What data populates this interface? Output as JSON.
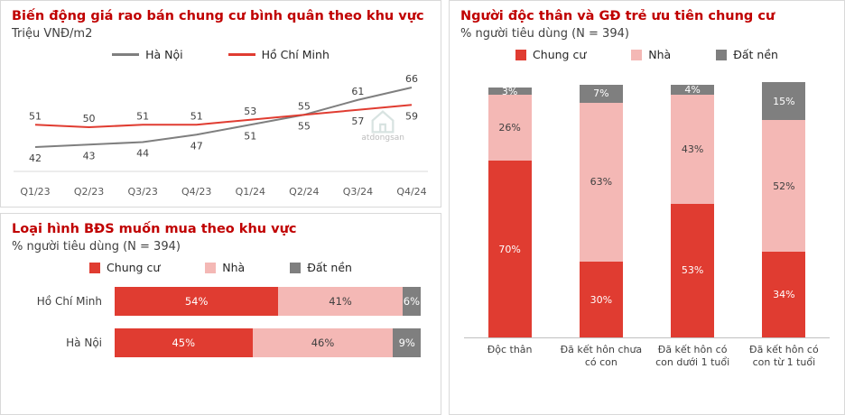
{
  "panels": {
    "price_trend": {
      "title": "Biến động giá rao bán chung cư bình quân theo khu vực",
      "subtitle": "Triệu VNĐ/m2"
    },
    "property_type_region": {
      "title": "Loại hình BĐS muốn mua theo khu vực",
      "subtitle": "% người tiêu dùng (N = 394)"
    },
    "priority_segment": {
      "title": "Người độc thân và GĐ trẻ ưu tiên chung cư",
      "subtitle": "% người tiêu dùng (N = 394)"
    }
  },
  "watermark": {
    "text": "atdongsan",
    "icon": "house-outline-icon"
  },
  "colors": {
    "title_red": "#c00000",
    "chung_cu_red": "#e03c31",
    "nha_pink": "#f4b8b5",
    "dat_nen_gray": "#7f7f7f",
    "hanoi_gray": "#7f7f7f",
    "hcm_red": "#e03c31",
    "axis_gray": "#d9d9d9"
  },
  "chart_data": [
    {
      "type": "line",
      "title": "Biến động giá rao bán chung cư bình quân theo khu vực",
      "ylabel": "Triệu VNĐ/m2",
      "categories": [
        "Q1/23",
        "Q2/23",
        "Q3/23",
        "Q4/23",
        "Q1/24",
        "Q2/24",
        "Q3/24",
        "Q4/24"
      ],
      "series": [
        {
          "name": "Hà Nội",
          "color": "#7f7f7f",
          "values": [
            42,
            43,
            44,
            47,
            51,
            55,
            61,
            66
          ]
        },
        {
          "name": "Hồ Chí Minh",
          "color": "#e03c31",
          "values": [
            51,
            50,
            51,
            51,
            53,
            55,
            57,
            59
          ]
        }
      ],
      "ylim": [
        38,
        70
      ],
      "grid": false,
      "legend_position": "top"
    },
    {
      "type": "bar",
      "orientation": "horizontal",
      "stacked": true,
      "title": "Loại hình BĐS muốn mua theo khu vực",
      "subtitle": "% người tiêu dùng (N = 394)",
      "categories": [
        "Hồ Chí Minh",
        "Hà Nội"
      ],
      "series": [
        {
          "name": "Chung cư",
          "color": "#e03c31",
          "values": [
            54,
            45
          ]
        },
        {
          "name": "Nhà",
          "color": "#f4b8b5",
          "values": [
            41,
            46
          ]
        },
        {
          "name": "Đất nền",
          "color": "#7f7f7f",
          "values": [
            6,
            9
          ]
        }
      ],
      "value_suffix": "%",
      "legend_position": "top"
    },
    {
      "type": "bar",
      "orientation": "vertical",
      "stacked": true,
      "title": "Người độc thân và GĐ trẻ ưu tiên chung cư",
      "subtitle": "% người tiêu dùng (N = 394)",
      "categories": [
        "Độc thân",
        "Đã kết hôn chưa có con",
        "Đã kết hôn có con dưới 1 tuổi",
        "Đã kết hôn có con từ 1 tuổi"
      ],
      "series": [
        {
          "name": "Chung cư",
          "color": "#e03c31",
          "values": [
            70,
            30,
            53,
            34
          ]
        },
        {
          "name": "Nhà",
          "color": "#f4b8b5",
          "values": [
            26,
            63,
            43,
            52
          ]
        },
        {
          "name": "Đất nền",
          "color": "#7f7f7f",
          "values": [
            3,
            7,
            4,
            15
          ]
        }
      ],
      "value_suffix": "%",
      "legend_position": "top"
    }
  ]
}
